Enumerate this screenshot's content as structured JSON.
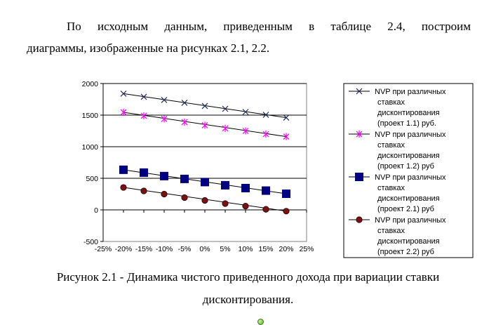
{
  "document": {
    "paragraph_line1": "По исходным данным, приведенным в таблице 2.4, построим",
    "paragraph_line2": "диаграммы, изображенные на рисунках 2.1, 2.2.",
    "caption_line1": "Рисунок 2.1 - Динамика чистого приведенного дохода при вариации ставки",
    "caption_line2": "дисконтирования."
  },
  "chart_data": {
    "type": "scatter",
    "title": "",
    "xlabel": "",
    "ylabel": "",
    "x_ticks": [
      "-25%",
      "-20%",
      "-15%",
      "-10%",
      "-5%",
      "0%",
      "5%",
      "10%",
      "15%",
      "20%",
      "25%"
    ],
    "y_ticks": [
      "-500",
      "0",
      "500",
      "1000",
      "1500",
      "2000"
    ],
    "xlim": [
      -25,
      25
    ],
    "ylim": [
      -500,
      2000
    ],
    "grid": "horizontal",
    "legend_position": "right",
    "x": [
      -20,
      -15,
      -10,
      -5,
      0,
      5,
      10,
      15,
      20
    ],
    "series": [
      {
        "name": "NVP при различных ставках дисконтирования (проект 1.1) руб.",
        "legend_lines": [
          "NVP при различных",
          "ставках",
          "дисконтирования",
          "(проект 1.1) руб."
        ],
        "marker": "x",
        "color": "#1f2a60",
        "values": [
          1840,
          1790,
          1740,
          1695,
          1645,
          1600,
          1550,
          1505,
          1460
        ]
      },
      {
        "name": "NVP при различных ставках дисконтирования (проект 1.2) руб",
        "legend_lines": [
          "NVP при различных",
          "ставках",
          "дисконтирования",
          "(проект 1.2) руб"
        ],
        "marker": "asterisk",
        "color": "#ff00ff",
        "values": [
          1545,
          1490,
          1440,
          1390,
          1340,
          1290,
          1250,
          1200,
          1160
        ]
      },
      {
        "name": "NVP при различных ставках дисконтирования (проект 2.1) руб",
        "legend_lines": [
          "NVP при различных",
          "ставках",
          "дисконтирования",
          "(проект 2.1) руб"
        ],
        "marker": "square",
        "color": "#000080",
        "values": [
          635,
          590,
          535,
          490,
          440,
          390,
          345,
          305,
          255
        ]
      },
      {
        "name": "NVP при различных ставках дисконтирования (проект 2.2) руб",
        "legend_lines": [
          "NVP при различных",
          "ставках",
          "дисконтирования",
          "(проект 2.2) руб"
        ],
        "marker": "circle",
        "color": "#7a1010",
        "values": [
          355,
          300,
          250,
          195,
          150,
          100,
          60,
          10,
          -20
        ]
      }
    ]
  }
}
